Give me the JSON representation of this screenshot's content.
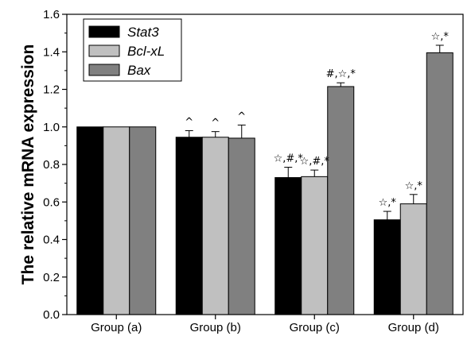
{
  "chart_data": {
    "type": "bar",
    "title": "",
    "xlabel": "",
    "ylabel": "The relative mRNA expression",
    "ylim": [
      0.0,
      1.6
    ],
    "yticks": [
      "0.0",
      "0.2",
      "0.4",
      "0.6",
      "0.8",
      "1.0",
      "1.2",
      "1.4",
      "1.6"
    ],
    "categories": [
      "Group (a)",
      "Group (b)",
      "Group (c)",
      "Group (d)"
    ],
    "legend_position": "top-left",
    "grid": false,
    "series": [
      {
        "name": "Stat3",
        "color": "#000000",
        "values": [
          1.0,
          0.945,
          0.73,
          0.505
        ],
        "errors": [
          0.0,
          0.035,
          0.055,
          0.045
        ],
        "annotations": [
          "",
          "^",
          "☆,#,*",
          "☆,*"
        ]
      },
      {
        "name": "Bcl-xL",
        "color": "#c0c0c0",
        "values": [
          1.0,
          0.945,
          0.735,
          0.59
        ],
        "errors": [
          0.0,
          0.03,
          0.035,
          0.05
        ],
        "annotations": [
          "",
          "^",
          "☆,#,*",
          "☆,*"
        ]
      },
      {
        "name": "Bax",
        "color": "#808080",
        "values": [
          1.0,
          0.94,
          1.215,
          1.395
        ],
        "errors": [
          0.0,
          0.07,
          0.02,
          0.04
        ],
        "annotations": [
          "",
          "^",
          "#,☆,*",
          "☆,*"
        ]
      }
    ]
  }
}
